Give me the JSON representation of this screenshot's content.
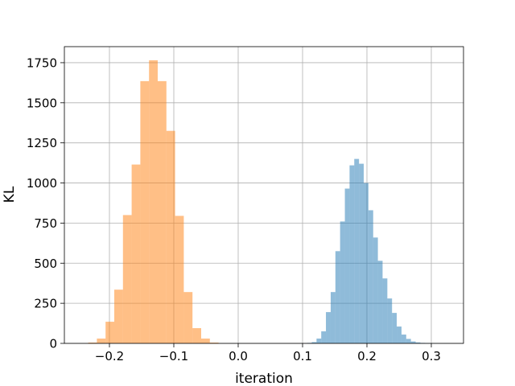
{
  "chart_data": {
    "type": "bar",
    "title": "",
    "xlabel": "iteration",
    "ylabel": "KL",
    "xlim": [
      -0.27,
      0.35
    ],
    "ylim": [
      0,
      1850
    ],
    "grid": true,
    "x_ticks": [
      -0.2,
      -0.1,
      0.0,
      0.1,
      0.2,
      0.3
    ],
    "x_tick_labels": [
      "−0.2",
      "−0.1",
      "0.0",
      "0.1",
      "0.2",
      "0.3"
    ],
    "y_ticks": [
      0,
      250,
      500,
      750,
      1000,
      1250,
      1500,
      1750
    ],
    "y_tick_labels": [
      "0",
      "250",
      "500",
      "750",
      "1000",
      "1250",
      "1500",
      "1750"
    ],
    "series": [
      {
        "color": "#1f77b4",
        "opacity": 0.5,
        "bin_edges": [
          0.107,
          0.1143,
          0.1217,
          0.129,
          0.1363,
          0.1437,
          0.151,
          0.1583,
          0.1657,
          0.173,
          0.1803,
          0.1877,
          0.195,
          0.2023,
          0.2097,
          0.217,
          0.2243,
          0.2317,
          0.239,
          0.2463,
          0.2537,
          0.261,
          0.2683,
          0.2757,
          0.283,
          0.2903,
          0.2977,
          0.305,
          0.3123,
          0.3197,
          0.327
        ],
        "counts": [
          3,
          8,
          30,
          75,
          195,
          320,
          575,
          760,
          965,
          1110,
          1150,
          1120,
          1000,
          830,
          660,
          515,
          405,
          280,
          190,
          105,
          55,
          28,
          12,
          6,
          3,
          2,
          1,
          1,
          0,
          1
        ]
      },
      {
        "color": "#ff7f0e",
        "opacity": 0.5,
        "bin_edges": [
          -0.233,
          -0.2195,
          -0.206,
          -0.1925,
          -0.179,
          -0.1655,
          -0.152,
          -0.1385,
          -0.125,
          -0.1115,
          -0.098,
          -0.0845,
          -0.071,
          -0.0575,
          -0.044,
          -0.0305
        ],
        "counts": [
          5,
          30,
          135,
          335,
          800,
          1115,
          1635,
          1765,
          1635,
          1325,
          795,
          320,
          95,
          30,
          5
        ]
      }
    ]
  }
}
